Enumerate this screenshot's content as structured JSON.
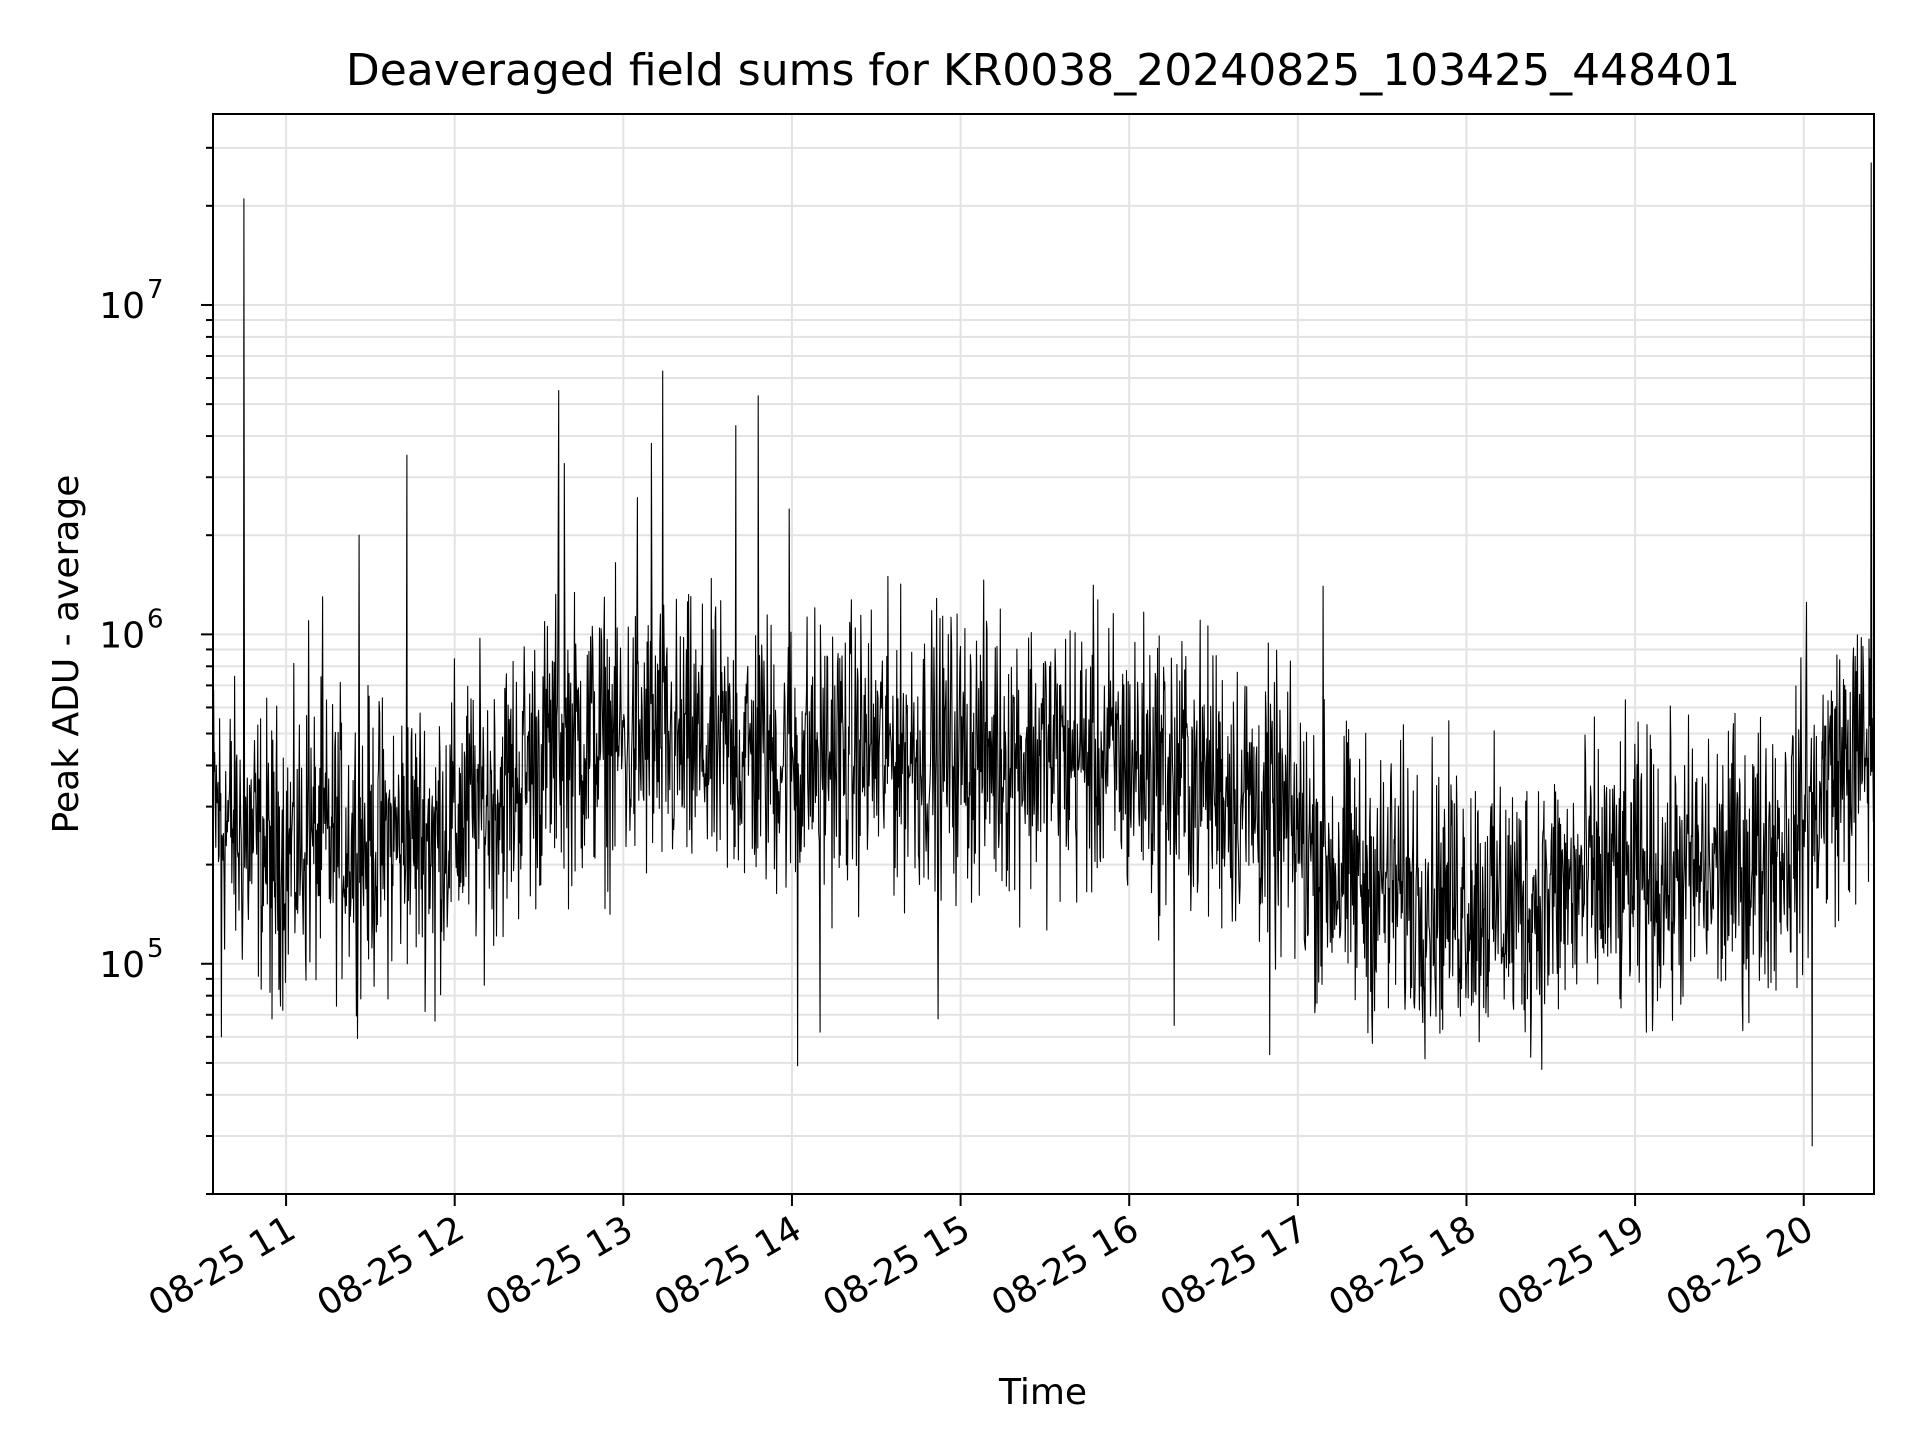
{
  "chart_data": {
    "type": "line",
    "title": "Deaveraged field sums for KR0038_20240825_103425_448401",
    "xlabel": "Time",
    "ylabel": "Peak ADU - average",
    "yscale": "log",
    "ylim": [
      20000,
      38000000
    ],
    "xlim": [
      "2024-08-25 10:34",
      "2024-08-25 20:25"
    ],
    "x_tick_labels": [
      "08-25 11",
      "08-25 12",
      "08-25 13",
      "08-25 14",
      "08-25 15",
      "08-25 16",
      "08-25 17",
      "08-25 18",
      "08-25 19",
      "08-25 20"
    ],
    "y_tick_labels": [
      {
        "value": 100000,
        "base": "10",
        "exp": "5"
      },
      {
        "value": 1000000,
        "base": "10",
        "exp": "6"
      },
      {
        "value": 10000000,
        "base": "10",
        "exp": "7"
      }
    ],
    "grid": true,
    "line_color": "#000000",
    "series": [
      {
        "x": [
          "2024-08-25 10:34",
          "2024-08-25 10:40",
          "2024-08-25 10:45",
          "2024-08-25 10:50",
          "2024-08-25 10:55",
          "2024-08-25 11:00",
          "2024-08-25 11:10",
          "2024-08-25 11:20",
          "2024-08-25 11:30",
          "2024-08-25 11:40",
          "2024-08-25 11:50",
          "2024-08-25 12:00",
          "2024-08-25 12:10",
          "2024-08-25 12:20",
          "2024-08-25 12:30",
          "2024-08-25 12:40",
          "2024-08-25 12:50",
          "2024-08-25 13:00",
          "2024-08-25 13:10",
          "2024-08-25 13:20",
          "2024-08-25 13:30",
          "2024-08-25 13:40",
          "2024-08-25 13:50",
          "2024-08-25 14:00",
          "2024-08-25 14:10",
          "2024-08-25 14:20",
          "2024-08-25 14:30",
          "2024-08-25 14:40",
          "2024-08-25 14:50",
          "2024-08-25 15:00",
          "2024-08-25 15:10",
          "2024-08-25 15:20",
          "2024-08-25 15:30",
          "2024-08-25 15:40",
          "2024-08-25 15:50",
          "2024-08-25 16:00",
          "2024-08-25 16:10",
          "2024-08-25 16:20",
          "2024-08-25 16:30",
          "2024-08-25 16:40",
          "2024-08-25 16:50",
          "2024-08-25 17:00",
          "2024-08-25 17:10",
          "2024-08-25 17:20",
          "2024-08-25 17:30",
          "2024-08-25 17:40",
          "2024-08-25 17:50",
          "2024-08-25 18:00",
          "2024-08-25 18:10",
          "2024-08-25 18:20",
          "2024-08-25 18:30",
          "2024-08-25 18:40",
          "2024-08-25 18:50",
          "2024-08-25 19:00",
          "2024-08-25 19:10",
          "2024-08-25 19:20",
          "2024-08-25 19:30",
          "2024-08-25 19:40",
          "2024-08-25 19:50",
          "2024-08-25 20:00",
          "2024-08-25 20:10",
          "2024-08-25 20:20",
          "2024-08-25 20:25"
        ],
        "y": [
          300000,
          260000,
          240000,
          230000,
          220000,
          220000,
          230000,
          240000,
          230000,
          240000,
          250000,
          270000,
          300000,
          350000,
          420000,
          470000,
          480000,
          470000,
          460000,
          450000,
          440000,
          430000,
          430000,
          420000,
          430000,
          440000,
          440000,
          440000,
          440000,
          440000,
          440000,
          440000,
          430000,
          430000,
          420000,
          410000,
          400000,
          380000,
          360000,
          330000,
          290000,
          250000,
          200000,
          180000,
          170000,
          170000,
          160000,
          160000,
          150000,
          150000,
          160000,
          170000,
          180000,
          180000,
          180000,
          190000,
          190000,
          200000,
          230000,
          260000,
          380000,
          430000,
          450000
        ]
      }
    ],
    "spikes": [
      {
        "x": "2024-08-25 10:45",
        "y": 21000000
      },
      {
        "x": "2024-08-25 11:08",
        "y": 1100000
      },
      {
        "x": "2024-08-25 11:13",
        "y": 1300000
      },
      {
        "x": "2024-08-25 11:26",
        "y": 2000000
      },
      {
        "x": "2024-08-25 11:43",
        "y": 3500000
      },
      {
        "x": "2024-08-25 12:37",
        "y": 5500000
      },
      {
        "x": "2024-08-25 12:39",
        "y": 3300000
      },
      {
        "x": "2024-08-25 13:05",
        "y": 2600000
      },
      {
        "x": "2024-08-25 13:10",
        "y": 3800000
      },
      {
        "x": "2024-08-25 13:14",
        "y": 6300000
      },
      {
        "x": "2024-08-25 13:40",
        "y": 4300000
      },
      {
        "x": "2024-08-25 13:48",
        "y": 5300000
      },
      {
        "x": "2024-08-25 13:59",
        "y": 2400000
      },
      {
        "x": "2024-08-25 17:09",
        "y": 1400000
      },
      {
        "x": "2024-08-25 20:01",
        "y": 1250000
      },
      {
        "x": "2024-08-25 20:24",
        "y": 27000000
      }
    ],
    "dips": [
      {
        "x": "2024-08-25 10:37",
        "y": 60000
      },
      {
        "x": "2024-08-25 10:55",
        "y": 68000
      },
      {
        "x": "2024-08-25 11:53",
        "y": 67000
      },
      {
        "x": "2024-08-25 14:02",
        "y": 49000
      },
      {
        "x": "2024-08-25 14:10",
        "y": 62000
      },
      {
        "x": "2024-08-25 14:52",
        "y": 68000
      },
      {
        "x": "2024-08-25 16:16",
        "y": 65000
      },
      {
        "x": "2024-08-25 16:50",
        "y": 53000
      },
      {
        "x": "2024-08-25 20:03",
        "y": 28000
      }
    ]
  }
}
